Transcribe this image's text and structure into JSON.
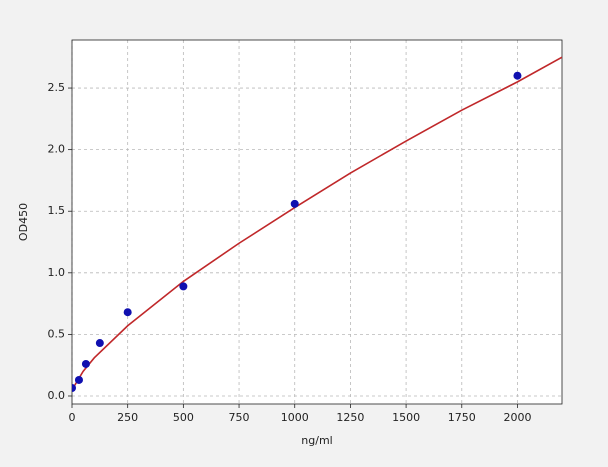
{
  "chart_data": {
    "type": "scatter",
    "xlabel": "ng/ml",
    "ylabel": "OD450",
    "xlim": [
      0,
      2200
    ],
    "ylim": [
      -0.065,
      2.89
    ],
    "xticks": [
      0,
      250,
      500,
      750,
      1000,
      1250,
      1500,
      1750,
      2000
    ],
    "yticks": [
      {
        "value": 0,
        "label": "0.0"
      },
      0.5,
      {
        "value": 1,
        "label": "1.0"
      },
      1.5,
      {
        "value": 2,
        "label": "2.0"
      },
      2.5
    ],
    "grid": true,
    "series": [
      {
        "style": "line",
        "color": "#c0282a",
        "x": [
          0,
          50,
          100,
          250,
          500,
          750,
          1000,
          1250,
          1500,
          1750,
          2000,
          2200
        ],
        "values": [
          0.05,
          0.2,
          0.31,
          0.57,
          0.93,
          1.24,
          1.53,
          1.81,
          2.07,
          2.32,
          2.55,
          2.75
        ]
      },
      {
        "style": "marker",
        "color": "#1010b0",
        "x": [
          0,
          31.25,
          62.5,
          125,
          250,
          500,
          1000,
          2000
        ],
        "values": [
          0.065,
          0.13,
          0.26,
          0.43,
          0.68,
          0.89,
          1.56,
          2.6
        ]
      }
    ]
  }
}
